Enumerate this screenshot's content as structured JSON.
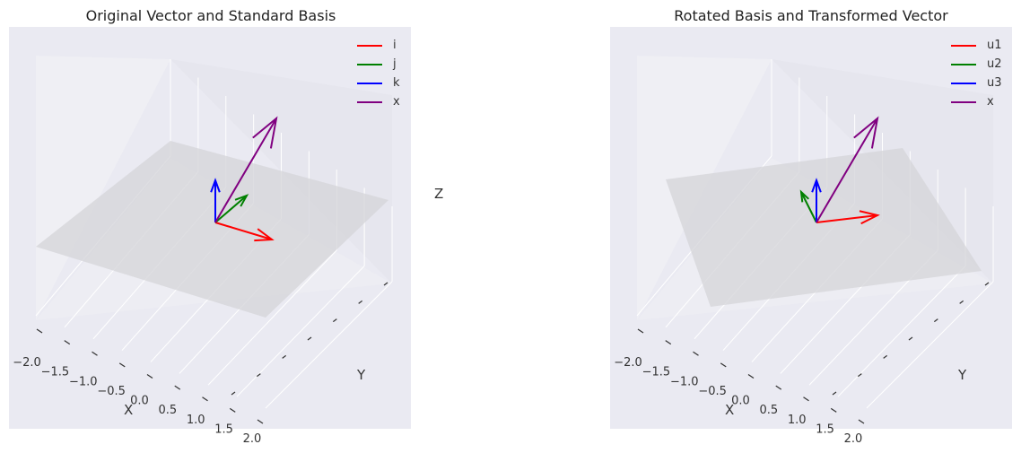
{
  "chart_data": [
    {
      "type": "3d-quiver",
      "title": "Original Vector and Standard Basis",
      "xlabel": "X",
      "ylabel": "Y",
      "zlabel": "Z",
      "xlim": [
        -2,
        2
      ],
      "ylim": [
        -2,
        2
      ],
      "zlim": [
        -2,
        2
      ],
      "x_ticks": [
        "−2.0",
        "−1.5",
        "−1.0",
        "−0.5",
        "0.0",
        "0.5",
        "1.0",
        "1.5",
        "2.0"
      ],
      "grid": true,
      "legend_position": "top-right",
      "plane": "z = 0 (gray, translucent)",
      "series": [
        {
          "name": "i",
          "color": "#ff0000",
          "vector": [
            1,
            0,
            0
          ]
        },
        {
          "name": "j",
          "color": "#008000",
          "vector": [
            0,
            1,
            0
          ]
        },
        {
          "name": "k",
          "color": "#0000ff",
          "vector": [
            0,
            0,
            1
          ]
        },
        {
          "name": "x",
          "color": "#800080",
          "vector": [
            1,
            2,
            3
          ]
        }
      ]
    },
    {
      "type": "3d-quiver",
      "title": "Rotated Basis and Transformed Vector",
      "xlabel": "X",
      "ylabel": "Y",
      "zlabel": "",
      "xlim": [
        -2,
        2
      ],
      "ylim": [
        -2,
        2
      ],
      "zlim": [
        -2,
        2
      ],
      "x_ticks": [
        "−2.0",
        "−1.5",
        "−1.0",
        "−0.5",
        "0.0",
        "0.5",
        "1.0",
        "1.5",
        "2.0"
      ],
      "grid": true,
      "legend_position": "top-right",
      "plane": "rotated plane (gray, translucent)",
      "series": [
        {
          "name": "u1",
          "color": "#ff0000",
          "vector": [
            0.7,
            0.7,
            0
          ]
        },
        {
          "name": "u2",
          "color": "#008000",
          "vector": [
            -0.7,
            0.7,
            0
          ]
        },
        {
          "name": "u3",
          "color": "#0000ff",
          "vector": [
            0,
            0,
            1
          ]
        },
        {
          "name": "x",
          "color": "#800080",
          "vector": [
            1,
            2,
            3
          ]
        }
      ]
    }
  ]
}
